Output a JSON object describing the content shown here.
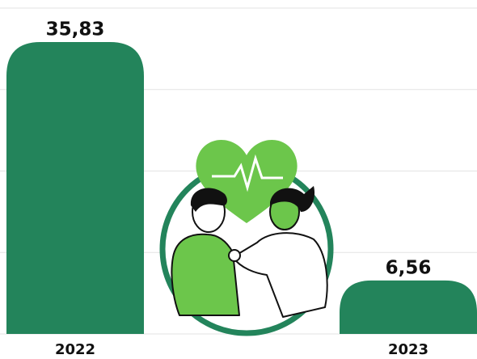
{
  "chart_data": {
    "type": "bar",
    "categories": [
      "2022",
      "2023"
    ],
    "values": [
      35.83,
      6.56
    ],
    "value_labels": [
      "35,83",
      "6,56"
    ],
    "color": "#23845b",
    "ylim": [
      0,
      40
    ],
    "yticks": [
      0,
      10,
      20,
      30,
      40
    ],
    "grid": true
  }
}
